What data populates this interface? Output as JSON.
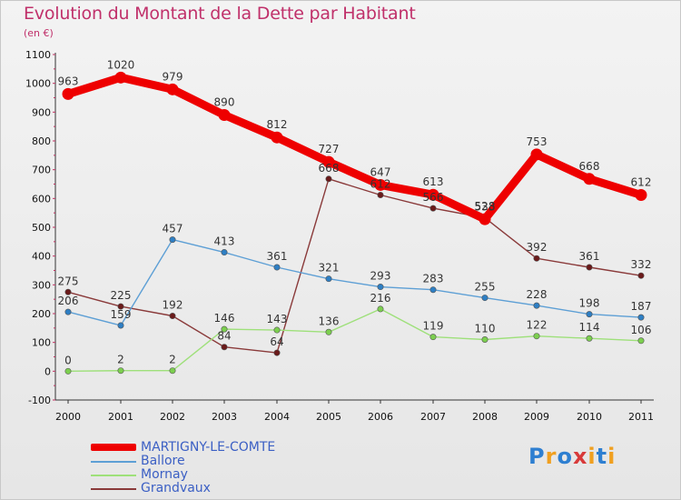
{
  "header": {
    "title": "Evolution du Montant de la Dette par Habitant",
    "subtitle": "(en €)"
  },
  "logo": {
    "text": "Proxiti",
    "colors": [
      "#2e7fd1",
      "#f0a020",
      "#2e7fd1",
      "#d83a3a",
      "#f0a020",
      "#2e7fd1",
      "#f0a020"
    ]
  },
  "chart_data": {
    "type": "line",
    "title": "Evolution du Montant de la Dette par Habitant",
    "subtitle": "(en €)",
    "xlabel": "",
    "ylabel": "",
    "x": [
      "2000",
      "2001",
      "2002",
      "2003",
      "2004",
      "2005",
      "2006",
      "2007",
      "2008",
      "2009",
      "2010",
      "2011"
    ],
    "yticks": [
      "-100",
      "0",
      "100",
      "200",
      "300",
      "400",
      "500",
      "600",
      "700",
      "800",
      "900",
      "1000",
      "1100"
    ],
    "ylim": [
      -100,
      1100
    ],
    "grid": false,
    "legend": "bottom-left",
    "series": [
      {
        "name": "MARTIGNY-LE-COMTE",
        "color": "#ee0000",
        "point_color": "#ee0000",
        "width": "thick",
        "values": [
          963,
          1020,
          979,
          890,
          812,
          727,
          647,
          613,
          528,
          753,
          668,
          612
        ],
        "labels": [
          "963",
          "1020",
          "979",
          "890",
          "812",
          "727",
          "647",
          "613",
          "528",
          "753",
          "668",
          "612"
        ]
      },
      {
        "name": "Ballore",
        "color": "#5d9fd5",
        "point_color": "#2e7fc4",
        "width": "thin",
        "values": [
          206,
          159,
          457,
          413,
          361,
          321,
          293,
          283,
          255,
          228,
          198,
          187
        ],
        "labels": [
          "206",
          "159",
          "457",
          "413",
          "361",
          "321",
          "293",
          "283",
          "255",
          "228",
          "198",
          "187"
        ]
      },
      {
        "name": "Mornay",
        "color": "#9ee07a",
        "point_color": "#7ccf4f",
        "width": "thin",
        "values": [
          0,
          2,
          2,
          146,
          143,
          136,
          216,
          119,
          110,
          122,
          114,
          106
        ],
        "labels": [
          "0",
          "2",
          "2",
          "146",
          "143",
          "136",
          "216",
          "119",
          "110",
          "122",
          "114",
          "106"
        ]
      },
      {
        "name": "Grandvaux",
        "color": "#8a3a3a",
        "point_color": "#6a1a1a",
        "width": "thin",
        "values": [
          275,
          225,
          192,
          84,
          64,
          668,
          612,
          566,
          533,
          392,
          361,
          332
        ],
        "labels": [
          "275",
          "225",
          "192",
          "84",
          "64",
          "668",
          "612",
          "566",
          "533",
          "392",
          "361",
          "332"
        ]
      }
    ]
  }
}
